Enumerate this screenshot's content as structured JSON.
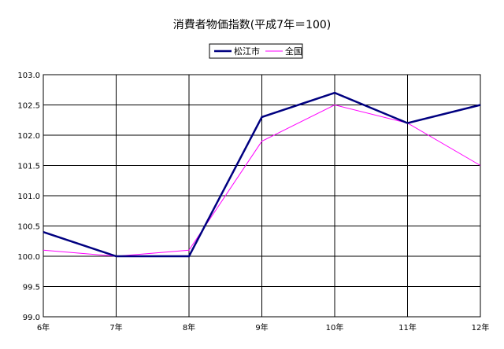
{
  "chart_data": {
    "type": "line",
    "title": "消費者物価指数(平成7年＝100)",
    "xlabel": "",
    "ylabel": "",
    "categories": [
      "6年",
      "7年",
      "8年",
      "9年",
      "10年",
      "11年",
      "12年"
    ],
    "ylim": [
      99.0,
      103.0
    ],
    "yticks": [
      99.0,
      99.5,
      100.0,
      100.5,
      101.0,
      101.5,
      102.0,
      102.5,
      103.0
    ],
    "ytick_labels": [
      "99.0",
      "99.5",
      "100.0",
      "100.5",
      "101.0",
      "101.5",
      "102.0",
      "102.5",
      "103.0"
    ],
    "grid": true,
    "legend_position": "top-center",
    "series": [
      {
        "name": "松江市",
        "color": "#000080",
        "values": [
          100.4,
          100.0,
          100.0,
          102.3,
          102.7,
          102.2,
          102.5
        ]
      },
      {
        "name": "全国",
        "color": "#ff00ff",
        "values": [
          100.1,
          100.0,
          100.1,
          101.9,
          102.5,
          102.2,
          101.5
        ]
      }
    ]
  }
}
